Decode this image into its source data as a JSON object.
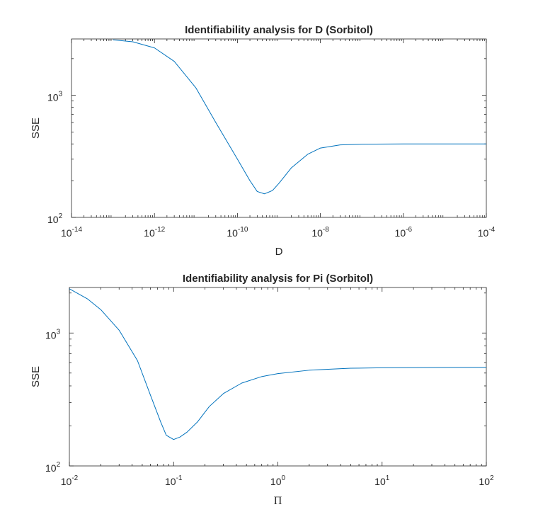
{
  "chart_data": [
    {
      "type": "line",
      "title": "Identifiability analysis for D (Sorbitol)",
      "xlabel": "D",
      "ylabel": "SSE",
      "xscale": "log",
      "yscale": "log",
      "xlim": [
        1e-14,
        0.0001
      ],
      "ylim": [
        100,
        2900
      ],
      "grid": false,
      "box": true,
      "line_color": "#0072BD",
      "x_ticks": [
        {
          "base": "10",
          "exp": "-14",
          "value": 1e-14
        },
        {
          "base": "10",
          "exp": "-12",
          "value": 1e-12
        },
        {
          "base": "10",
          "exp": "-10",
          "value": 1e-10
        },
        {
          "base": "10",
          "exp": "-8",
          "value": 1e-08
        },
        {
          "base": "10",
          "exp": "-6",
          "value": 1e-06
        },
        {
          "base": "10",
          "exp": "-4",
          "value": 0.0001
        }
      ],
      "y_ticks": [
        {
          "base": "10",
          "exp": "2",
          "value": 100
        },
        {
          "base": "10",
          "exp": "3",
          "value": 1000
        }
      ],
      "x": [
        1e-13,
        3e-13,
        1e-12,
        3e-12,
        1e-11,
        3e-11,
        1e-10,
        2e-10,
        3e-10,
        4.5e-10,
        7e-10,
        1e-09,
        2e-09,
        5e-09,
        1e-08,
        3e-08,
        1e-07,
        1e-06,
        1e-05,
        0.0001
      ],
      "series": [
        {
          "values": [
            2850,
            2750,
            2450,
            1900,
            1150,
            600,
            300,
            200,
            163,
            156,
            166,
            190,
            255,
            330,
            370,
            393,
            398,
            400,
            400,
            400
          ]
        }
      ]
    },
    {
      "type": "line",
      "title": "Identifiability analysis for Pi (Sorbitol)",
      "xlabel": "Π",
      "ylabel": "SSE",
      "xscale": "log",
      "yscale": "log",
      "xlim": [
        0.01,
        100
      ],
      "ylim": [
        100,
        2200
      ],
      "grid": false,
      "box": true,
      "line_color": "#0072BD",
      "x_ticks": [
        {
          "base": "10",
          "exp": "-2",
          "value": 0.01
        },
        {
          "base": "10",
          "exp": "-1",
          "value": 0.1
        },
        {
          "base": "10",
          "exp": "0",
          "value": 1
        },
        {
          "base": "10",
          "exp": "1",
          "value": 10
        },
        {
          "base": "10",
          "exp": "2",
          "value": 100
        }
      ],
      "y_ticks": [
        {
          "base": "10",
          "exp": "2",
          "value": 100
        },
        {
          "base": "10",
          "exp": "3",
          "value": 1000
        }
      ],
      "x": [
        0.01,
        0.015,
        0.02,
        0.03,
        0.045,
        0.06,
        0.075,
        0.085,
        0.1,
        0.115,
        0.135,
        0.17,
        0.22,
        0.3,
        0.45,
        0.7,
        1,
        2,
        5,
        10,
        30,
        100
      ],
      "series": [
        {
          "values": [
            2150,
            1800,
            1500,
            1050,
            620,
            340,
            215,
            170,
            158,
            165,
            180,
            215,
            280,
            350,
            420,
            470,
            495,
            525,
            543,
            548,
            550,
            552
          ]
        }
      ]
    }
  ]
}
